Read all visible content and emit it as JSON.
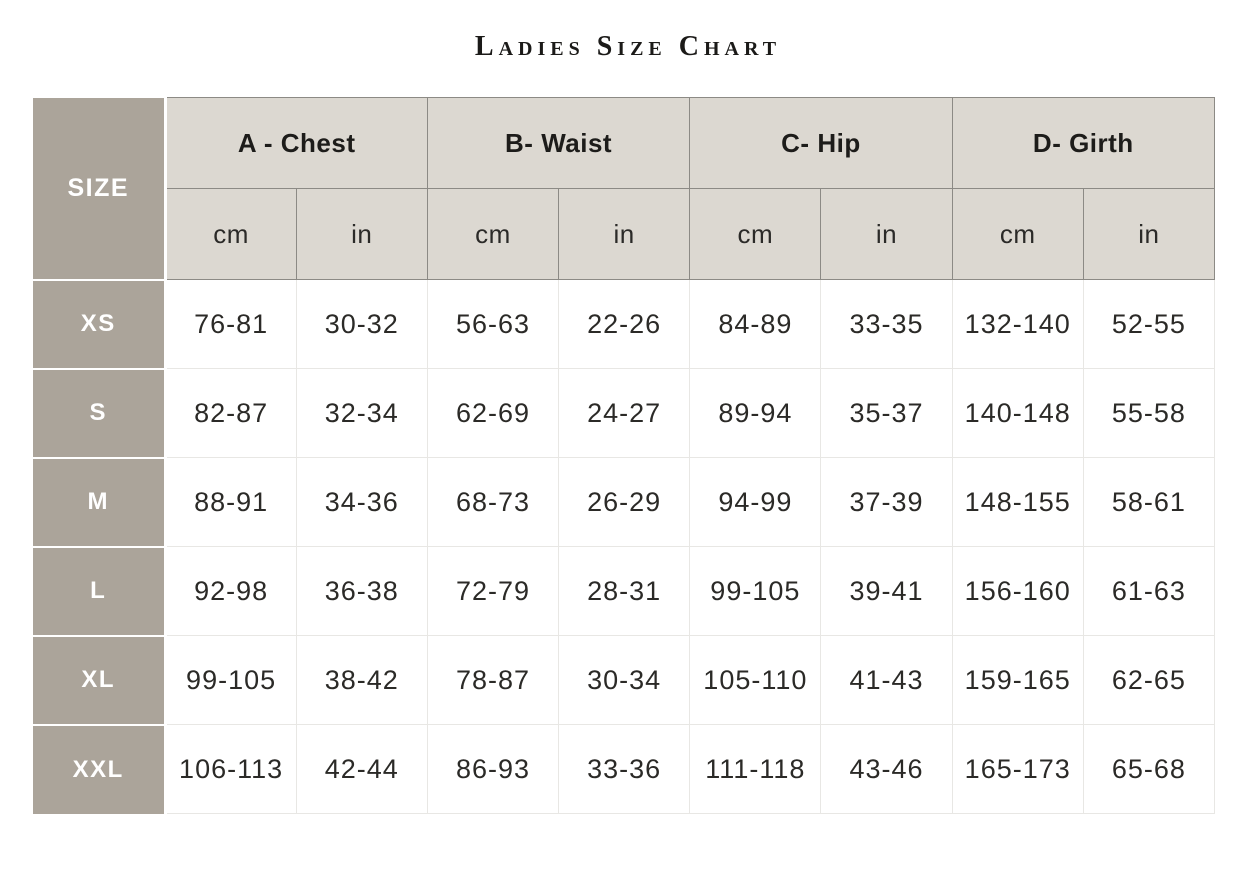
{
  "title": "Ladies Size Chart",
  "colors": {
    "size_column_bg": "#aba49a",
    "header_bg": "#dcd8d1",
    "header_border": "#8c8a85",
    "body_border": "#e8e7e4",
    "size_text": "#ffffff",
    "header_text": "#1d1c1a",
    "cell_text": "#2b2a27",
    "page_bg": "#ffffff"
  },
  "chart_data": {
    "type": "table",
    "title": "Ladies Size Chart",
    "corner_header": "SIZE",
    "column_groups": [
      "A - Chest",
      "B- Waist",
      "C- Hip",
      "D- Girth"
    ],
    "unit_subheaders": [
      "cm",
      "in"
    ],
    "rows": [
      {
        "size": "XS",
        "values": [
          "76-81",
          "30-32",
          "56-63",
          "22-26",
          "84-89",
          "33-35",
          "132-140",
          "52-55"
        ]
      },
      {
        "size": "S",
        "values": [
          "82-87",
          "32-34",
          "62-69",
          "24-27",
          "89-94",
          "35-37",
          "140-148",
          "55-58"
        ]
      },
      {
        "size": "M",
        "values": [
          "88-91",
          "34-36",
          "68-73",
          "26-29",
          "94-99",
          "37-39",
          "148-155",
          "58-61"
        ]
      },
      {
        "size": "L",
        "values": [
          "92-98",
          "36-38",
          "72-79",
          "28-31",
          "99-105",
          "39-41",
          "156-160",
          "61-63"
        ]
      },
      {
        "size": "XL",
        "values": [
          "99-105",
          "38-42",
          "78-87",
          "30-34",
          "105-110",
          "41-43",
          "159-165",
          "62-65"
        ]
      },
      {
        "size": "XXL",
        "values": [
          "106-113",
          "42-44",
          "86-93",
          "33-36",
          "111-118",
          "43-46",
          "165-173",
          "65-68"
        ]
      }
    ]
  }
}
